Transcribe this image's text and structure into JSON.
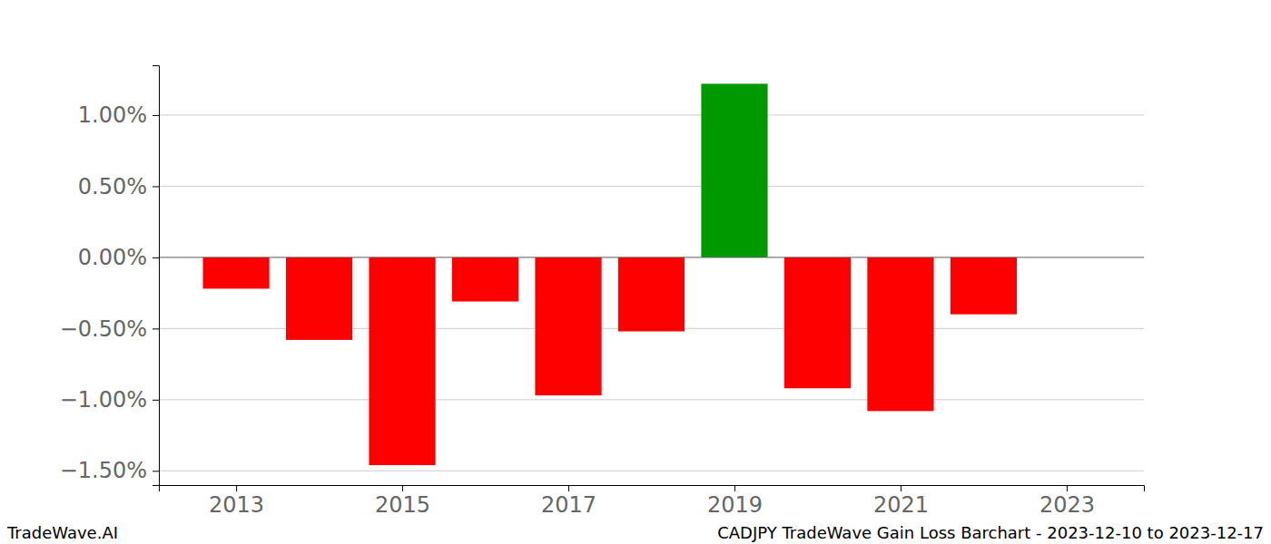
{
  "chart_data": {
    "type": "bar",
    "title": "CADJPY TradeWave Gain Loss Barchart - 2023-12-10 to 2023-12-17",
    "annotations": [
      "TradeWave.AI"
    ],
    "x": [
      2013,
      2014,
      2015,
      2016,
      2017,
      2018,
      2019,
      2020,
      2021,
      2022
    ],
    "values": [
      -0.22,
      -0.58,
      -1.46,
      -0.31,
      -0.97,
      -0.52,
      1.22,
      -0.92,
      -1.08,
      -0.4
    ],
    "colors": [
      "#ff0000",
      "#ff0000",
      "#ff0000",
      "#ff0000",
      "#ff0000",
      "#ff0000",
      "#009900",
      "#ff0000",
      "#ff0000",
      "#ff0000"
    ],
    "xlim": [
      2012.07,
      2023.93
    ],
    "xticks": [
      2013,
      2015,
      2017,
      2019,
      2021,
      2023
    ],
    "ylim": [
      -1.6,
      1.35
    ],
    "yticks": [
      {
        "value": -1.5,
        "label": "−1.50%"
      },
      {
        "value": -1,
        "label": "−1.00%"
      },
      {
        "value": -0.5,
        "label": "−0.50%"
      },
      {
        "value": 0,
        "label": "0.00%"
      },
      {
        "value": 0.5,
        "label": "0.50%"
      },
      {
        "value": 1,
        "label": "1.00%"
      }
    ],
    "grid": true
  }
}
